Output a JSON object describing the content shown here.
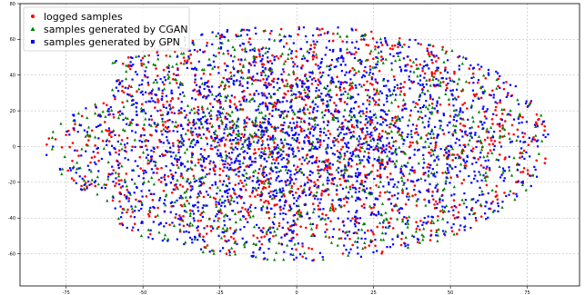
{
  "chart_data": {
    "type": "scatter",
    "title": "",
    "xlabel": "",
    "ylabel": "",
    "xlim": [
      -90,
      92
    ],
    "ylim": [
      -78,
      80
    ],
    "xticks": [
      -75,
      -50,
      -25,
      0,
      25,
      50,
      75
    ],
    "yticks": [
      -60,
      -40,
      -20,
      0,
      20,
      40,
      60,
      80
    ],
    "grid": true,
    "legend_position": "top-left",
    "series": [
      {
        "name": "logged samples",
        "marker": "circle",
        "color": "#ff0000",
        "approx_count": 1400
      },
      {
        "name": "samples generated by CGAN",
        "marker": "triangle",
        "color": "#007f00",
        "approx_count": 1000
      },
      {
        "name": "samples generated by GPN",
        "marker": "square",
        "color": "#0000ff",
        "approx_count": 2200
      }
    ]
  }
}
